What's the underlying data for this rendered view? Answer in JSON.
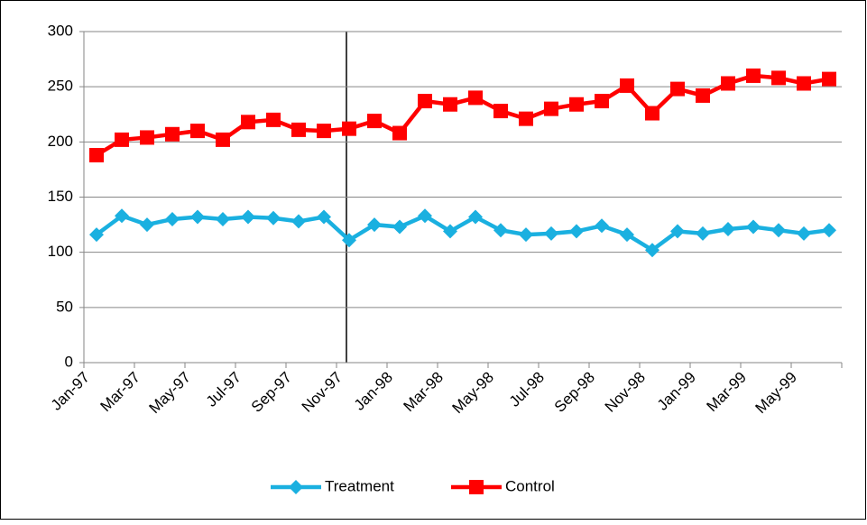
{
  "chart_data": {
    "type": "line",
    "categories": [
      "Jan-97",
      null,
      "Mar-97",
      null,
      "May-97",
      null,
      "Jul-97",
      null,
      "Sep-97",
      null,
      "Nov-97",
      null,
      "Jan-98",
      null,
      "Mar-98",
      null,
      "May-98",
      null,
      "Jul-98",
      null,
      "Sep-98",
      null,
      "Nov-98",
      null,
      "Jan-99",
      null,
      "Mar-99",
      null,
      "May-99",
      null
    ],
    "series": [
      {
        "name": "Treatment",
        "color": "#1ab0e0",
        "marker": "diamond",
        "values": [
          116,
          133,
          125,
          130,
          132,
          130,
          132,
          131,
          128,
          132,
          111,
          125,
          123,
          133,
          119,
          132,
          120,
          116,
          117,
          119,
          124,
          116,
          102,
          119,
          117,
          121,
          123,
          120,
          117,
          120
        ]
      },
      {
        "name": "Control",
        "color": "#ff0000",
        "marker": "square",
        "values": [
          188,
          202,
          204,
          207,
          210,
          202,
          218,
          220,
          211,
          210,
          212,
          219,
          208,
          237,
          234,
          240,
          228,
          221,
          230,
          234,
          237,
          251,
          226,
          248,
          242,
          253,
          260,
          258,
          253,
          257
        ]
      }
    ],
    "ylim": [
      0,
      300
    ],
    "yticks": [
      0,
      50,
      100,
      150,
      200,
      250,
      300
    ],
    "grid": true,
    "legend": "bottom"
  }
}
